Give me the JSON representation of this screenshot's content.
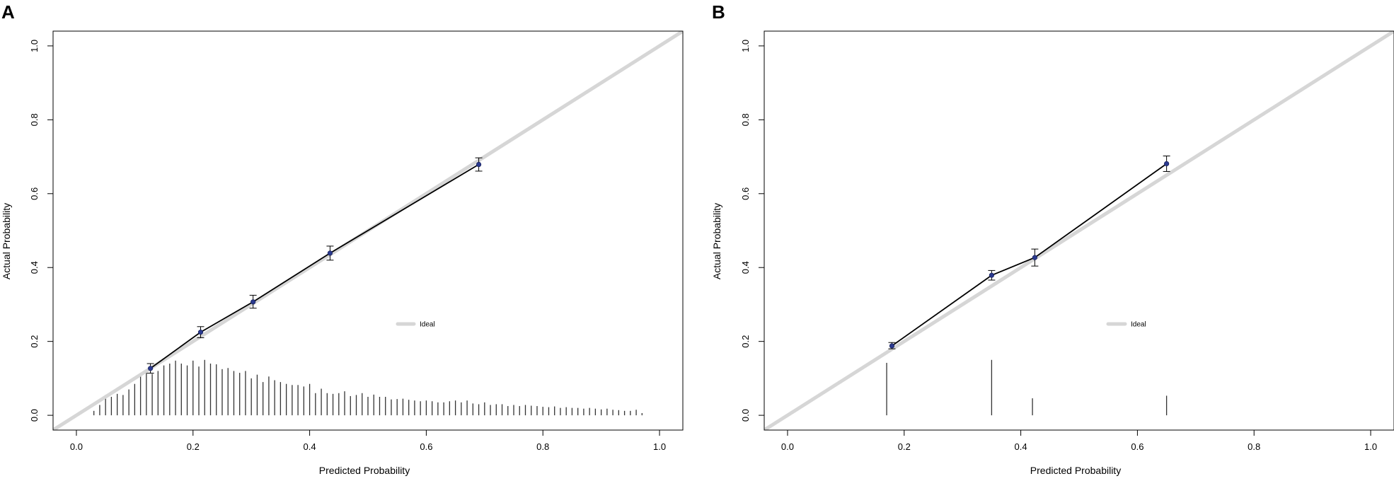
{
  "colors": {
    "ideal_line": "#d6d6d6",
    "apparent_line": "#000000",
    "point": "#2b3a8f",
    "spike": "#333333",
    "frame": "#000000"
  },
  "chart_data": [
    {
      "type": "line",
      "panel_label": "A",
      "xlabel": "Predicted Probability",
      "ylabel": "Actual Probability",
      "xlim": [
        -0.04,
        1.04
      ],
      "ylim": [
        -0.04,
        1.04
      ],
      "xticks": [
        0.0,
        0.2,
        0.4,
        0.6,
        0.8,
        1.0
      ],
      "xtick_labels": [
        "0.0",
        "0.2",
        "0.4",
        "0.6",
        "0.8",
        "1.0"
      ],
      "yticks": [
        0.0,
        0.2,
        0.4,
        0.6,
        0.8,
        1.0
      ],
      "ytick_labels": [
        "0.0",
        "0.2",
        "0.4",
        "0.6",
        "0.8",
        "1.0"
      ],
      "grid": false,
      "legend": {
        "position": "right-middle",
        "entries": [
          "Ideal"
        ]
      },
      "ideal_line": {
        "x": [
          -0.04,
          1.04
        ],
        "y": [
          -0.04,
          1.04
        ]
      },
      "series": [
        {
          "x": [
            0.127,
            0.213,
            0.303,
            0.435,
            0.69
          ],
          "y": [
            0.127,
            0.225,
            0.307,
            0.439,
            0.679
          ],
          "ci_low": [
            0.114,
            0.21,
            0.29,
            0.42,
            0.661
          ],
          "ci_high": [
            0.14,
            0.24,
            0.325,
            0.458,
            0.697
          ]
        }
      ],
      "histogram": {
        "x": [
          0.03,
          0.04,
          0.05,
          0.06,
          0.07,
          0.08,
          0.09,
          0.1,
          0.11,
          0.12,
          0.13,
          0.14,
          0.15,
          0.16,
          0.17,
          0.18,
          0.19,
          0.2,
          0.21,
          0.22,
          0.23,
          0.24,
          0.25,
          0.26,
          0.27,
          0.28,
          0.29,
          0.3,
          0.31,
          0.32,
          0.33,
          0.34,
          0.35,
          0.36,
          0.37,
          0.38,
          0.39,
          0.4,
          0.41,
          0.42,
          0.43,
          0.44,
          0.45,
          0.46,
          0.47,
          0.48,
          0.49,
          0.5,
          0.51,
          0.52,
          0.53,
          0.54,
          0.55,
          0.56,
          0.57,
          0.58,
          0.59,
          0.6,
          0.61,
          0.62,
          0.63,
          0.64,
          0.65,
          0.66,
          0.67,
          0.68,
          0.69,
          0.7,
          0.71,
          0.72,
          0.73,
          0.74,
          0.75,
          0.76,
          0.77,
          0.78,
          0.79,
          0.8,
          0.81,
          0.82,
          0.83,
          0.84,
          0.85,
          0.86,
          0.87,
          0.88,
          0.89,
          0.9,
          0.91,
          0.92,
          0.93,
          0.94,
          0.95,
          0.96,
          0.97
        ],
        "values": [
          0.012,
          0.028,
          0.055,
          0.05,
          0.058,
          0.055,
          0.07,
          0.085,
          0.11,
          0.12,
          0.112,
          0.12,
          0.135,
          0.14,
          0.148,
          0.14,
          0.135,
          0.148,
          0.132,
          0.15,
          0.14,
          0.138,
          0.125,
          0.128,
          0.12,
          0.115,
          0.12,
          0.1,
          0.11,
          0.09,
          0.105,
          0.095,
          0.09,
          0.085,
          0.082,
          0.082,
          0.078,
          0.085,
          0.06,
          0.072,
          0.06,
          0.058,
          0.06,
          0.065,
          0.052,
          0.055,
          0.06,
          0.05,
          0.056,
          0.05,
          0.05,
          0.043,
          0.044,
          0.045,
          0.042,
          0.04,
          0.038,
          0.04,
          0.038,
          0.035,
          0.035,
          0.038,
          0.04,
          0.035,
          0.04,
          0.032,
          0.03,
          0.035,
          0.028,
          0.03,
          0.03,
          0.025,
          0.028,
          0.025,
          0.028,
          0.026,
          0.025,
          0.023,
          0.022,
          0.024,
          0.02,
          0.022,
          0.02,
          0.02,
          0.018,
          0.02,
          0.018,
          0.016,
          0.018,
          0.015,
          0.014,
          0.012,
          0.012,
          0.015,
          0.006
        ]
      }
    },
    {
      "type": "line",
      "panel_label": "B",
      "xlabel": "Predicted Probability",
      "ylabel": "Actual Probability",
      "xlim": [
        -0.04,
        1.04
      ],
      "ylim": [
        -0.04,
        1.04
      ],
      "xticks": [
        0.0,
        0.2,
        0.4,
        0.6,
        0.8,
        1.0
      ],
      "xtick_labels": [
        "0.0",
        "0.2",
        "0.4",
        "0.6",
        "0.8",
        "1.0"
      ],
      "yticks": [
        0.0,
        0.2,
        0.4,
        0.6,
        0.8,
        1.0
      ],
      "ytick_labels": [
        "0.0",
        "0.2",
        "0.4",
        "0.6",
        "0.8",
        "1.0"
      ],
      "grid": false,
      "legend": {
        "position": "right-middle",
        "entries": [
          "Ideal"
        ]
      },
      "ideal_line": {
        "x": [
          -0.04,
          1.04
        ],
        "y": [
          -0.04,
          1.04
        ]
      },
      "series": [
        {
          "x": [
            0.179,
            0.35,
            0.424,
            0.65
          ],
          "y": [
            0.188,
            0.379,
            0.427,
            0.681
          ],
          "ci_low": [
            0.18,
            0.366,
            0.404,
            0.66
          ],
          "ci_high": [
            0.197,
            0.392,
            0.45,
            0.702
          ]
        }
      ],
      "histogram": {
        "x": [
          0.17,
          0.35,
          0.42,
          0.65
        ],
        "values": [
          0.142,
          0.15,
          0.046,
          0.053
        ]
      }
    }
  ]
}
